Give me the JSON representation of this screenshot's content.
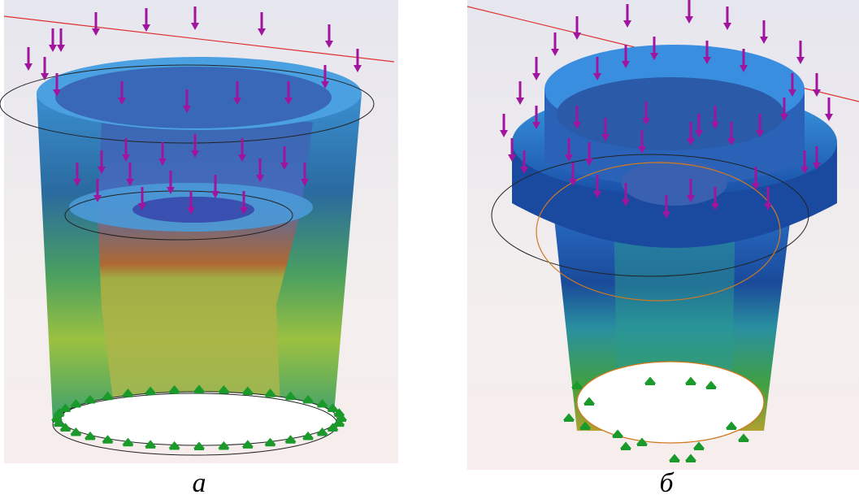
{
  "panels": [
    {
      "caption": "а"
    },
    {
      "caption": "б"
    }
  ]
}
